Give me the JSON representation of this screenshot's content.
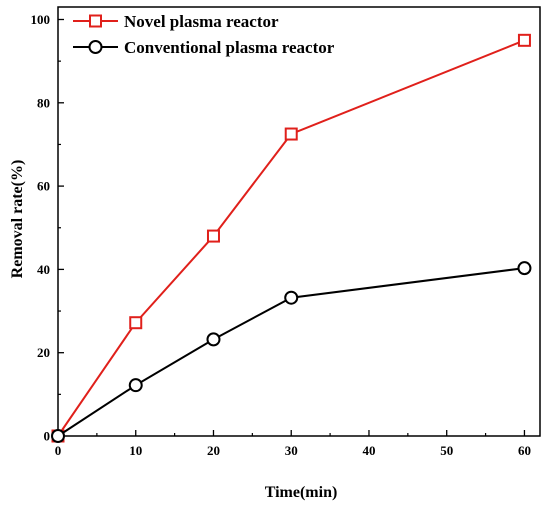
{
  "chart_data": {
    "type": "line",
    "title": "",
    "xlabel": "Time(min)",
    "ylabel": "Removal rate(%)",
    "xlim": [
      0,
      62
    ],
    "ylim": [
      0,
      103
    ],
    "x_ticks": [
      0,
      10,
      20,
      30,
      40,
      50,
      60
    ],
    "y_ticks": [
      0,
      20,
      40,
      60,
      80,
      100
    ],
    "x_tick_labels": [
      "0",
      "10",
      "20",
      "30",
      "40",
      "50",
      "60"
    ],
    "y_tick_labels": [
      "0",
      "20",
      "40",
      "60",
      "80",
      "100"
    ],
    "grid": false,
    "legend_position": "top-left",
    "series": [
      {
        "name": "Novel plasma reactor",
        "color": "#e0201b",
        "marker": "square",
        "x": [
          0,
          10,
          20,
          30,
          60
        ],
        "y": [
          0,
          27.2,
          48.0,
          72.5,
          95.0
        ]
      },
      {
        "name": "Conventional plasma reactor",
        "color": "#000000",
        "marker": "circle",
        "x": [
          0,
          10,
          20,
          30,
          60
        ],
        "y": [
          0,
          12.2,
          23.2,
          33.2,
          40.3
        ]
      }
    ]
  }
}
